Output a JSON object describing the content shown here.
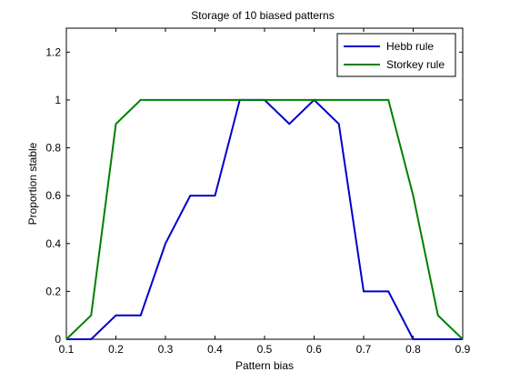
{
  "chart_data": {
    "type": "line",
    "title": "Storage of 10 biased patterns",
    "xlabel": "Pattern bias",
    "ylabel": "Proportion stable",
    "xlim": [
      0.1,
      0.9
    ],
    "ylim": [
      0,
      1.3
    ],
    "x_ticks": [
      "0.1",
      "0.2",
      "0.3",
      "0.4",
      "0.5",
      "0.6",
      "0.7",
      "0.8",
      "0.9"
    ],
    "y_ticks": [
      "0",
      "0.2",
      "0.4",
      "0.6",
      "0.8",
      "1",
      "1.2"
    ],
    "x_tick_values": [
      0.1,
      0.2,
      0.3,
      0.4,
      0.5,
      0.6,
      0.7,
      0.8,
      0.9
    ],
    "y_tick_values": [
      0,
      0.2,
      0.4,
      0.6,
      0.8,
      1.0,
      1.2
    ],
    "x": [
      0.1,
      0.15,
      0.2,
      0.25,
      0.3,
      0.35,
      0.4,
      0.45,
      0.5,
      0.55,
      0.6,
      0.65,
      0.7,
      0.75,
      0.8,
      0.85,
      0.9
    ],
    "series": [
      {
        "name": "Hebb rule",
        "color": "#0000cc",
        "values": [
          0,
          0,
          0.1,
          0.1,
          0.4,
          0.6,
          0.6,
          1.0,
          1.0,
          0.9,
          1.0,
          0.9,
          0.2,
          0.2,
          0,
          0,
          0
        ]
      },
      {
        "name": "Storkey rule",
        "color": "#008000",
        "values": [
          0,
          0.1,
          0.9,
          1.0,
          1.0,
          1.0,
          1.0,
          1.0,
          1.0,
          1.0,
          1.0,
          1.0,
          1.0,
          1.0,
          0.6,
          0.1,
          0
        ]
      }
    ],
    "grid": false,
    "legend_position": "top-right"
  }
}
